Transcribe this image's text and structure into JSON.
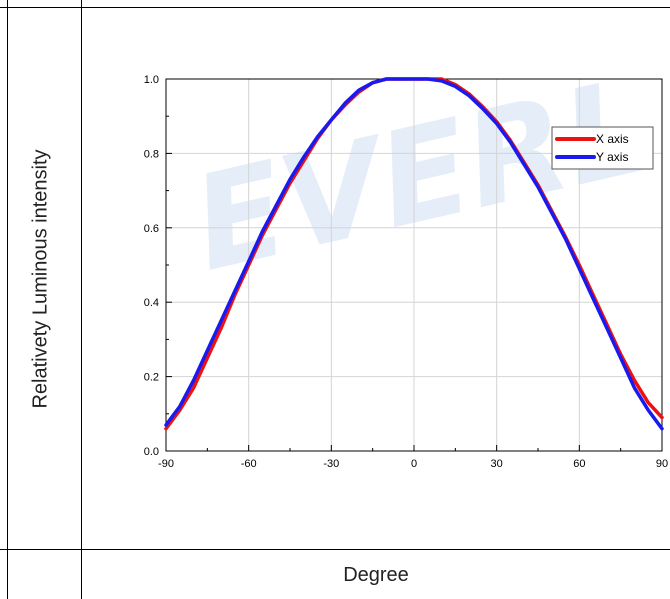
{
  "watermark": "EVERL",
  "chart_data": {
    "type": "line",
    "xlabel": "Degree",
    "ylabel": "Relativety Luminous intensity",
    "xlim": [
      -90,
      90
    ],
    "ylim": [
      0.0,
      1.0
    ],
    "x_ticks": [
      "-90",
      "-60",
      "-30",
      "0",
      "30",
      "60",
      "90"
    ],
    "y_ticks": [
      "0.0",
      "0.2",
      "0.4",
      "0.6",
      "0.8",
      "1.0"
    ],
    "grid": true,
    "legend_position": "top-right",
    "x": [
      -90,
      -85,
      -80,
      -75,
      -70,
      -65,
      -60,
      -55,
      -50,
      -45,
      -40,
      -35,
      -30,
      -25,
      -20,
      -15,
      -10,
      -5,
      0,
      5,
      10,
      15,
      20,
      25,
      30,
      35,
      40,
      45,
      50,
      55,
      60,
      65,
      70,
      75,
      80,
      85,
      90
    ],
    "series": [
      {
        "name": "X axis",
        "color": "#ee1111",
        "values": [
          0.06,
          0.11,
          0.17,
          0.25,
          0.33,
          0.42,
          0.5,
          0.58,
          0.65,
          0.72,
          0.78,
          0.84,
          0.89,
          0.93,
          0.965,
          0.99,
          1.0,
          1.0,
          1.0,
          1.0,
          1.0,
          0.985,
          0.96,
          0.925,
          0.885,
          0.835,
          0.775,
          0.715,
          0.645,
          0.575,
          0.5,
          0.42,
          0.34,
          0.26,
          0.19,
          0.13,
          0.09
        ]
      },
      {
        "name": "Y axis",
        "color": "#1a1aee",
        "values": [
          0.07,
          0.12,
          0.19,
          0.27,
          0.35,
          0.43,
          0.51,
          0.59,
          0.66,
          0.73,
          0.79,
          0.845,
          0.89,
          0.935,
          0.97,
          0.99,
          1.0,
          1.0,
          1.0,
          1.0,
          0.995,
          0.98,
          0.955,
          0.92,
          0.88,
          0.83,
          0.77,
          0.71,
          0.64,
          0.57,
          0.49,
          0.41,
          0.33,
          0.25,
          0.17,
          0.11,
          0.06
        ]
      }
    ]
  }
}
